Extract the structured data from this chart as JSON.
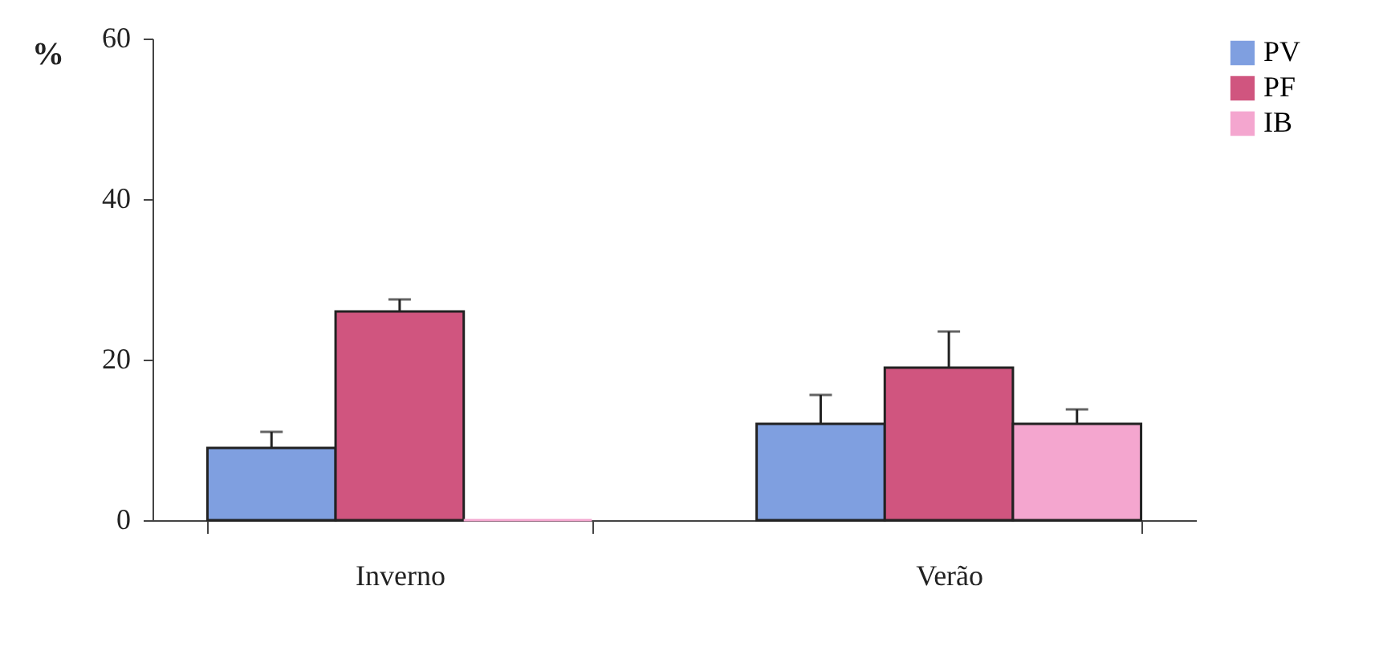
{
  "chart_data": {
    "type": "bar",
    "ylabel": "%",
    "categories": [
      "Inverno",
      "Verão"
    ],
    "series": [
      {
        "name": "PV",
        "color": "#7f9fe0",
        "values": [
          9,
          12
        ],
        "errors": [
          2,
          3.6
        ]
      },
      {
        "name": "PF",
        "color": "#d0557f",
        "values": [
          26,
          19
        ],
        "errors": [
          1.5,
          4.5
        ]
      },
      {
        "name": "IB",
        "color": "#f4a6cf",
        "values": [
          0,
          12
        ],
        "errors": [
          null,
          1.8
        ]
      }
    ],
    "ylim": [
      0,
      60
    ],
    "yticks": [
      0,
      20,
      40,
      60
    ],
    "grid": false,
    "legend": "right"
  }
}
